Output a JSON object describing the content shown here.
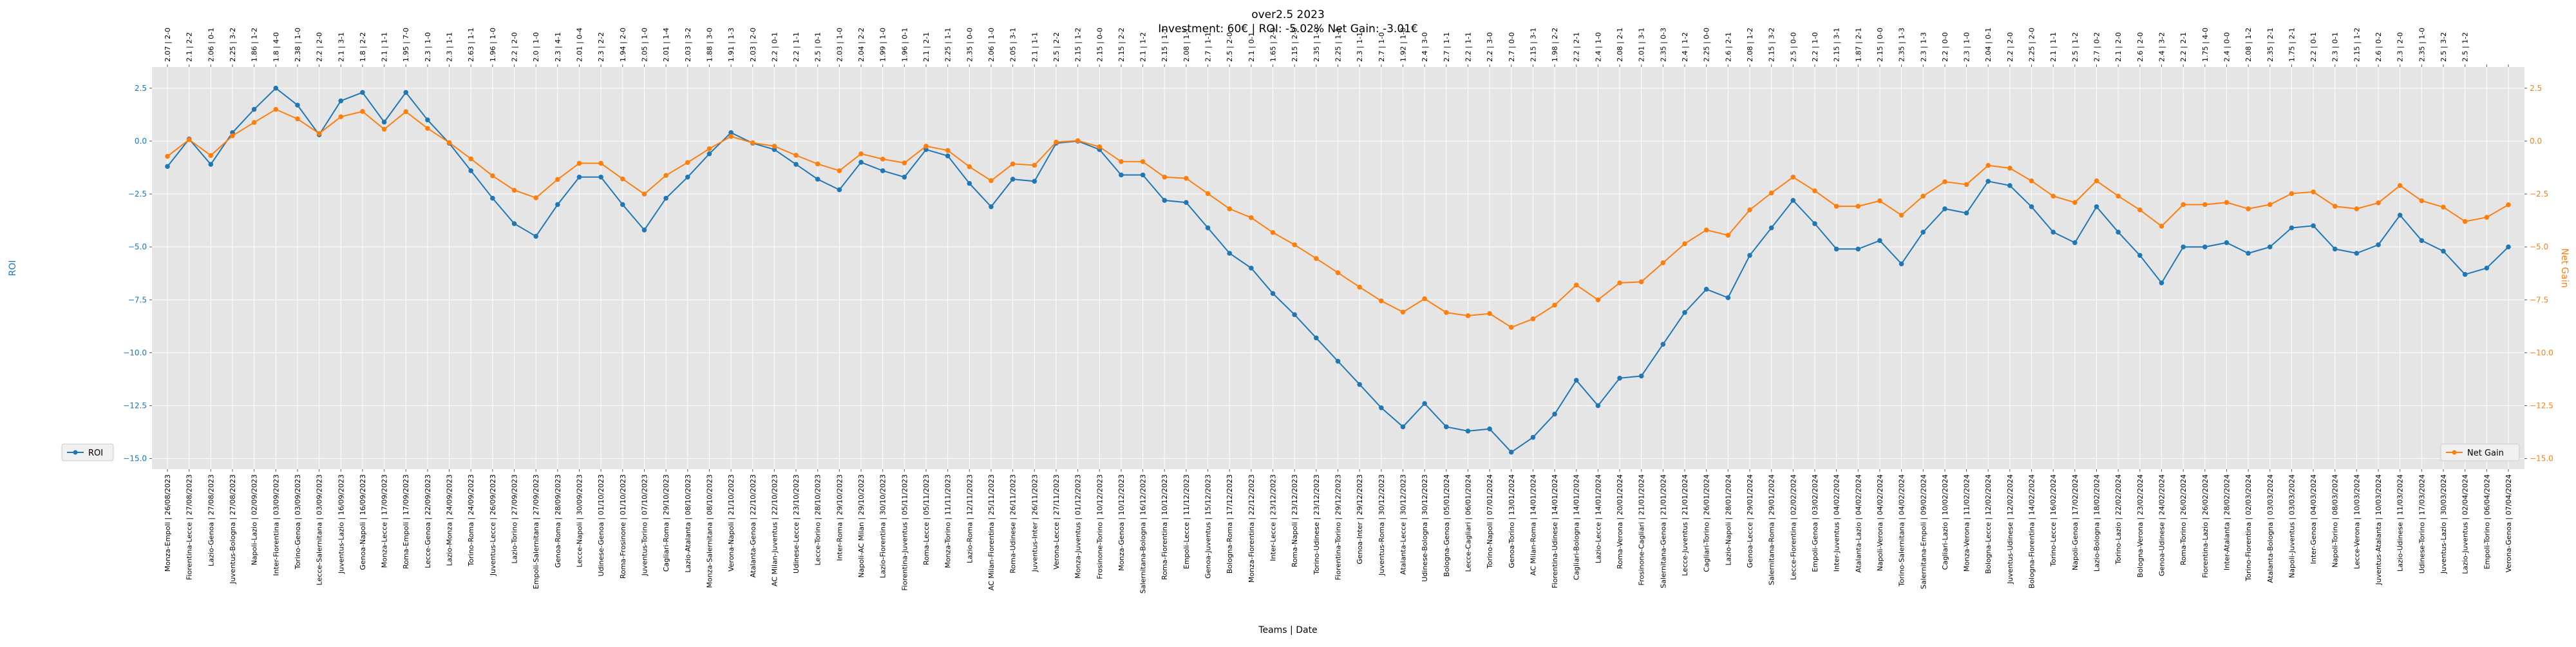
{
  "chart_data": {
    "type": "line",
    "title": "over2.5 2023",
    "subtitle": "Investment: 60€ | ROI: -5.02% Net Gain: -3.01€",
    "xlabel": "Teams | Date",
    "ylabel_left": "ROI",
    "ylabel_right": "Net Gain",
    "ylim_left": [
      -15.5,
      3.5
    ],
    "ylim_right": [
      -15.5,
      3.5
    ],
    "yticks": [
      2.5,
      0.0,
      -2.5,
      -5.0,
      -7.5,
      -10.0,
      -12.5,
      -15.0
    ],
    "ytick_labels": [
      "2.5",
      "0.0",
      "−2.5",
      "−5.0",
      "−7.5",
      "−10.0",
      "−12.5",
      "−15.0"
    ],
    "grid": true,
    "legend_left": "bottom-left",
    "legend_right": "bottom-right",
    "colors": {
      "roi": "#1f77b4",
      "net_gain": "#ff7f0e",
      "plot_bg": "#e5e5e5",
      "grid": "#ffffff"
    },
    "categories": [
      "Monza-Empoli | 26/08/2023",
      "Fiorentina-Lecce | 27/08/2023",
      "Lazio-Genoa | 27/08/2023",
      "Juventus-Bologna | 27/08/2023",
      "Napoli-Lazio | 02/09/2023",
      "Inter-Fiorentina | 03/09/2023",
      "Torino-Genoa | 03/09/2023",
      "Lecce-Salernitana | 03/09/2023",
      "Juventus-Lazio | 16/09/2023",
      "Genoa-Napoli | 16/09/2023",
      "Monza-Lecce | 17/09/2023",
      "Roma-Empoli | 17/09/2023",
      "Lecce-Genoa | 22/09/2023",
      "Lazio-Monza | 24/09/2023",
      "Torino-Roma | 24/09/2023",
      "Juventus-Lecce | 26/09/2023",
      "Lazio-Torino | 27/09/2023",
      "Empoli-Salernitana | 27/09/2023",
      "Genoa-Roma | 28/09/2023",
      "Lecce-Napoli | 30/09/2023",
      "Udinese-Genoa | 01/10/2023",
      "Roma-Frosinone | 01/10/2023",
      "Juventus-Torino | 07/10/2023",
      "Cagliari-Roma | 29/10/2023",
      "Lazio-Atalanta | 08/10/2023",
      "Monza-Salernitana | 08/10/2023",
      "Verona-Napoli | 21/10/2023",
      "Atalanta-Genoa | 22/10/2023",
      "AC Milan-Juventus | 22/10/2023",
      "Udinese-Lecce | 23/10/2023",
      "Lecce-Torino | 28/10/2023",
      "Inter-Roma | 29/10/2023",
      "Napoli-AC Milan | 29/10/2023",
      "Lazio-Fiorentina | 30/10/2023",
      "Fiorentina-Juventus | 05/11/2023",
      "Roma-Lecce | 05/11/2023",
      "Monza-Torino | 11/11/2023",
      "Lazio-Roma | 12/11/2023",
      "AC Milan-Fiorentina | 25/11/2023",
      "Roma-Udinese | 26/11/2023",
      "Juventus-Inter | 26/11/2023",
      "Verona-Lecce | 27/11/2023",
      "Monza-Juventus | 01/12/2023",
      "Frosinone-Torino | 10/12/2023",
      "Monza-Genoa | 10/12/2023",
      "Salernitana-Bologna | 16/12/2023",
      "Roma-Fiorentina | 10/12/2023",
      "Empoli-Lecce | 11/12/2023",
      "Genoa-Juventus | 15/12/2023",
      "Bologna-Roma | 17/12/2023",
      "Monza-Fiorentina | 22/12/2023",
      "Inter-Lecce | 23/12/2023",
      "Roma-Napoli | 23/12/2023",
      "Torino-Udinese | 23/12/2023",
      "Fiorentina-Torino | 29/12/2023",
      "Genoa-Inter | 29/12/2023",
      "Juventus-Roma | 30/12/2023",
      "Atalanta-Lecce | 30/12/2023",
      "Udinese-Bologna | 30/12/2023",
      "Bologna-Genoa | 05/01/2024",
      "Lecce-Cagliari | 06/01/2024",
      "Torino-Napoli | 07/01/2024",
      "Genoa-Torino | 13/01/2024",
      "AC Milan-Roma | 14/01/2024",
      "Fiorentina-Udinese | 14/01/2024",
      "Cagliari-Bologna | 14/01/2024",
      "Lazio-Lecce | 14/01/2024",
      "Roma-Verona | 20/01/2024",
      "Frosinone-Cagliari | 21/01/2024",
      "Salernitana-Genoa | 21/01/2024",
      "Lecce-Juventus | 21/01/2024",
      "Cagliari-Torino | 26/01/2024",
      "Lazio-Napoli | 28/01/2024",
      "Genoa-Lecce | 29/01/2024",
      "Salernitana-Roma | 29/01/2024",
      "Lecce-Fiorentina | 02/02/2024",
      "Empoli-Genoa | 03/02/2024",
      "Inter-Juventus | 04/02/2024",
      "Atalanta-Lazio | 04/02/2024",
      "Napoli-Verona | 04/02/2024",
      "Torino-Salernitana | 04/02/2024",
      "Salernitana-Empoli | 09/02/2024",
      "Cagliari-Lazio | 10/02/2024",
      "Monza-Verona | 11/02/2024",
      "Bologna-Lecce | 12/02/2024",
      "Juventus-Udinese | 12/02/2024",
      "Bologna-Fiorentina | 14/02/2024",
      "Torino-Lecce | 16/02/2024",
      "Napoli-Genoa | 17/02/2024",
      "Lazio-Bologna | 18/02/2024",
      "Torino-Lazio | 22/02/2024",
      "Bologna-Verona | 23/02/2024",
      "Genoa-Udinese | 24/02/2024",
      "Roma-Torino | 26/02/2024",
      "Fiorentina-Lazio | 26/02/2024",
      "Inter-Atalanta | 28/02/2024",
      "Torino-Fiorentina | 02/03/2024",
      "Atalanta-Bologna | 03/03/2024",
      "Napoli-Juventus | 03/03/2024",
      "Inter-Genoa | 04/03/2024",
      "Napoli-Torino | 08/03/2024",
      "Lecce-Verona | 10/03/2024",
      "Juventus-Atalanta | 10/03/2024",
      "Lazio-Udinese | 11/03/2024",
      "Udinese-Torino | 17/03/2024",
      "Juventus-Lazio | 30/03/2024",
      "Lazio-Juventus | 02/04/2024",
      "Empoli-Torino | 06/04/2024",
      "Verona-Genoa | 07/04/2024"
    ],
    "odds_labels": [
      "2.07 | 2-0",
      "2.1 | 2-2",
      "2.06 | 0-1",
      "2.25 | 3-2",
      "1.86 | 1-2",
      "1.8 | 4-0",
      "2.38 | 1-0",
      "2.2 | 2-0",
      "2.1 | 3-1",
      "1.8 | 2-2",
      "2.1 | 1-1",
      "1.95 | 7-0",
      "2.3 | 1-0",
      "2.3 | 1-1",
      "2.63 | 1-1",
      "1.96 | 1-0",
      "2.2 | 2-0",
      "2.0 | 1-0",
      "2.3 | 4-1",
      "2.01 | 0-4",
      "2.3 | 2-2",
      "1.94 | 2-0",
      "2.05 | 1-0",
      "2.01 | 1-4",
      "2.03 | 3-2",
      "1.88 | 3-0",
      "1.91 | 1-3",
      "2.03 | 2-0",
      "2.2 | 0-1",
      "2.2 | 1-1",
      "2.5 | 0-1",
      "2.03 | 1-0",
      "2.04 | 2-2",
      "1.99 | 1-0",
      "1.96 | 0-1",
      "2.1 | 2-1",
      "2.25 | 1-1",
      "2.35 | 0-0",
      "2.06 | 1-0",
      "2.05 | 3-1",
      "2.1 | 1-1",
      "2.5 | 2-2",
      "2.15 | 1-2",
      "2.15 | 0-0",
      "2.15 | 2-2",
      "2.1 | 1-2",
      "2.15 | 1-1",
      "2.08 | 1-1",
      "2.7 | 1-1",
      "2.5 | 2-0",
      "2.1 | 0-1",
      "1.65 | 2-0",
      "2.15 | 2-0",
      "2.35 | 1-0",
      "2.25 | 1-1",
      "2.3 | 1-1",
      "2.7 | 1-0",
      "1.92 | 1-0",
      "2.4 | 3-0",
      "2.7 | 1-1",
      "2.2 | 1-1",
      "2.2 | 3-0",
      "2.7 | 0-0",
      "2.15 | 3-1",
      "1.98 | 2-2",
      "2.2 | 2-1",
      "2.4 | 1-0",
      "2.08 | 2-1",
      "2.01 | 3-1",
      "2.35 | 0-3",
      "2.4 | 1-2",
      "2.25 | 0-0",
      "2.6 | 2-1",
      "2.08 | 1-2",
      "2.15 | 3-2",
      "2.5 | 0-0",
      "2.2 | 1-0",
      "2.15 | 3-1",
      "1.87 | 2-1",
      "2.15 | 0-0",
      "2.35 | 1-3",
      "2.3 | 1-3",
      "2.2 | 0-0",
      "2.3 | 1-0",
      "2.04 | 0-1",
      "2.2 | 2-0",
      "2.25 | 2-0",
      "2.1 | 1-1",
      "2.5 | 1-2",
      "2.7 | 0-2",
      "2.1 | 2-0",
      "2.6 | 2-0",
      "2.4 | 3-2",
      "2.2 | 2-1",
      "1.75 | 4-0",
      "2.4 | 0-0",
      "2.08 | 1-2",
      "2.35 | 2-1",
      "1.75 | 2-1",
      "2.2 | 0-1",
      "2.3 | 0-1",
      "2.15 | 1-2",
      "2.6 | 0-2",
      "2.3 | 2-0",
      "2.35 | 1-0",
      "2.5 | 3-2",
      "2.5 | 1-2"
    ],
    "series": [
      {
        "name": "ROI",
        "axis": "left",
        "color": "#1f77b4",
        "values": [
          -1.2,
          0.1,
          -1.1,
          0.4,
          1.5,
          2.5,
          1.7,
          0.3,
          1.9,
          2.3,
          0.9,
          2.3,
          1.0,
          -0.1,
          -1.4,
          -2.7,
          -3.9,
          -4.5,
          -3.0,
          -1.7,
          -1.7,
          -3.0,
          -4.2,
          -2.7,
          -1.7,
          -0.6,
          0.4,
          -0.1,
          -0.4,
          -1.1,
          -1.8,
          -2.3,
          -1.0,
          -1.4,
          -1.7,
          -0.4,
          -0.7,
          -2.0,
          -3.1,
          -1.8,
          -1.9,
          -0.1,
          0.0,
          -0.4,
          -1.6,
          -1.6,
          -2.8,
          -2.9,
          -4.1,
          -5.3,
          -6.0,
          -7.2,
          -8.2,
          -9.3,
          -10.4,
          -11.5,
          -12.6,
          -13.5,
          -12.4,
          -13.5,
          -13.7,
          -13.6,
          -14.7,
          -14.0,
          -12.9,
          -11.3,
          -12.5,
          -11.2,
          -11.1,
          -9.6,
          -8.1,
          -7.0,
          -7.4,
          -5.4,
          -4.1,
          -2.8,
          -3.9,
          -5.1,
          -5.1,
          -4.7,
          -5.8,
          -4.3,
          -3.2,
          -3.4,
          -1.9,
          -2.1,
          -3.1,
          -4.3,
          -4.8,
          -3.1,
          -4.3,
          -5.4,
          -6.7,
          -5.0,
          -5.0,
          -4.8,
          -5.3,
          -5.0,
          -4.1,
          -4.0,
          -5.1,
          -5.3,
          -4.9,
          -3.5,
          -4.7,
          -5.2,
          -6.3,
          -6.0,
          -5.0
        ]
      },
      {
        "name": "Net Gain",
        "axis": "right",
        "color": "#ff7f0e",
        "values": [
          -0.72,
          0.07,
          -0.68,
          0.25,
          0.88,
          1.5,
          1.05,
          0.36,
          1.15,
          1.4,
          0.56,
          1.39,
          0.6,
          -0.07,
          -0.84,
          -1.64,
          -2.32,
          -2.68,
          -1.81,
          -1.05,
          -1.05,
          -1.79,
          -2.5,
          -1.62,
          -1.01,
          -0.36,
          0.22,
          -0.08,
          -0.24,
          -0.67,
          -1.08,
          -1.4,
          -0.6,
          -0.85,
          -1.03,
          -0.24,
          -0.44,
          -1.21,
          -1.87,
          -1.08,
          -1.14,
          -0.05,
          0.02,
          -0.27,
          -0.97,
          -0.97,
          -1.7,
          -1.76,
          -2.48,
          -3.2,
          -3.62,
          -4.32,
          -4.9,
          -5.55,
          -6.22,
          -6.9,
          -7.55,
          -8.08,
          -7.45,
          -8.1,
          -8.25,
          -8.15,
          -8.8,
          -8.4,
          -7.75,
          -6.8,
          -7.5,
          -6.7,
          -6.65,
          -5.75,
          -4.85,
          -4.2,
          -4.45,
          -3.25,
          -2.45,
          -1.7,
          -2.35,
          -3.08,
          -3.08,
          -2.82,
          -3.5,
          -2.6,
          -1.92,
          -2.05,
          -1.15,
          -1.28,
          -1.88,
          -2.6,
          -2.9,
          -1.88,
          -2.6,
          -3.25,
          -4.02,
          -3.0,
          -3.0,
          -2.9,
          -3.2,
          -3.0,
          -2.48,
          -2.4,
          -3.08,
          -3.2,
          -2.92,
          -2.1,
          -2.82,
          -3.12,
          -3.8,
          -3.6,
          -3.01
        ]
      }
    ]
  }
}
